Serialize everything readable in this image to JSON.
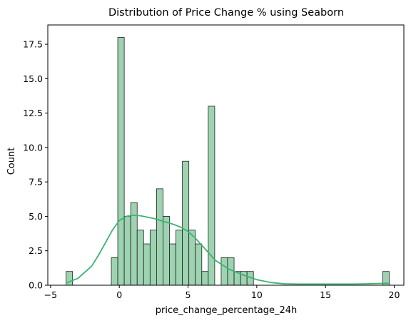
{
  "chart_data": {
    "type": "bar",
    "title": "Distribution of Price Change % using Seaborn",
    "xlabel": "price_change_percentage_24h",
    "ylabel": "Count",
    "xlim": [
      -5.2,
      20.7
    ],
    "ylim": [
      0,
      18.9
    ],
    "x_ticks": [
      -5,
      0,
      5,
      10,
      15,
      20
    ],
    "x_tick_labels": [
      "−5",
      "0",
      "5",
      "10",
      "15",
      "20"
    ],
    "y_ticks": [
      0,
      2.5,
      5,
      7.5,
      10,
      12.5,
      15,
      17.5
    ],
    "y_tick_labels": [
      "0.0",
      "2.5",
      "5.0",
      "7.5",
      "10.0",
      "12.5",
      "15.0",
      "17.5"
    ],
    "bin_edges": [
      -3.87,
      -3.4,
      -2.93,
      -2.46,
      -1.99,
      -1.52,
      -1.05,
      -0.58,
      -0.11,
      0.36,
      0.83,
      1.3,
      1.77,
      2.24,
      2.71,
      3.18,
      3.65,
      4.12,
      4.59,
      5.06,
      5.53,
      6.0,
      6.47,
      6.94,
      7.41,
      7.88,
      8.35,
      8.82,
      9.29,
      9.76,
      10.23,
      10.7,
      11.17,
      11.64,
      12.11,
      12.58,
      13.05,
      13.52,
      13.99,
      14.46,
      14.93,
      15.4,
      15.87,
      16.34,
      16.81,
      17.28,
      17.75,
      18.22,
      18.69,
      19.16,
      19.63
    ],
    "counts": [
      1,
      0,
      0,
      0,
      0,
      0,
      0,
      2,
      18,
      5,
      6,
      4,
      3,
      4,
      7,
      5,
      3,
      4,
      9,
      4,
      3,
      1,
      13,
      0,
      2,
      2,
      1,
      1,
      1,
      0,
      0,
      0,
      0,
      0,
      0,
      0,
      0,
      0,
      0,
      0,
      0,
      0,
      0,
      0,
      0,
      0,
      0,
      0,
      0,
      1
    ],
    "kde_curve": {
      "x": [
        -3.9,
        -3,
        -2,
        -1.5,
        -1,
        -0.5,
        0,
        0.5,
        1,
        1.5,
        2,
        2.5,
        3,
        3.5,
        4,
        4.5,
        5,
        5.5,
        6,
        6.5,
        7,
        8,
        9,
        10,
        11,
        12,
        13,
        14,
        15,
        16,
        17,
        18,
        19,
        19.6
      ],
      "y": [
        0.15,
        0.5,
        1.4,
        2.2,
        3.1,
        4.0,
        4.7,
        5.0,
        5.08,
        5.05,
        4.95,
        4.85,
        4.7,
        4.55,
        4.4,
        4.2,
        3.9,
        3.45,
        2.9,
        2.35,
        1.8,
        1.15,
        0.75,
        0.4,
        0.2,
        0.1,
        0.08,
        0.08,
        0.08,
        0.08,
        0.08,
        0.1,
        0.13,
        0.15
      ]
    },
    "grid": false,
    "colors": {
      "bar_fill": "#9ed3b1",
      "bar_edge": "#1f1f1f",
      "kde_line": "#3cb371",
      "axis": "#000000"
    }
  }
}
